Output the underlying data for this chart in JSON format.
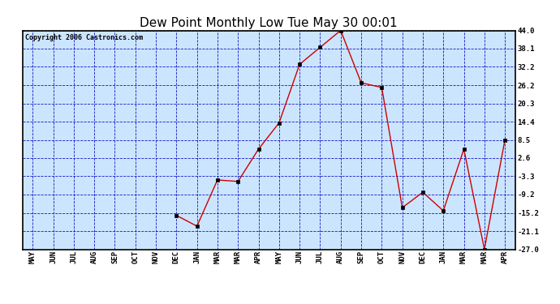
{
  "title": "Dew Point Monthly Low Tue May 30 00:01",
  "copyright": "Copyright 2006 Castronics.com",
  "x_labels": [
    "MAY",
    "JUN",
    "JUL",
    "AUG",
    "SEP",
    "OCT",
    "NOV",
    "DEC",
    "JAN",
    "MAR",
    "MAR",
    "APR",
    "MAY",
    "JUN",
    "JUL",
    "AUG",
    "SEP",
    "OCT",
    "NOV",
    "DEC",
    "JAN",
    "MAR",
    "MAR",
    "APR"
  ],
  "data_x": [
    7,
    8,
    9,
    10,
    11,
    12,
    13,
    14,
    15,
    16,
    17,
    18,
    19,
    20,
    21,
    22,
    23
  ],
  "data_y": [
    -16.0,
    -19.5,
    -4.5,
    -5.0,
    5.5,
    14.0,
    33.0,
    38.5,
    44.0,
    27.0,
    25.5,
    -13.5,
    -8.5,
    -14.5,
    5.5,
    -27.0,
    8.5
  ],
  "ylim": [
    -27.0,
    44.0
  ],
  "yticks": [
    44.0,
    38.1,
    32.2,
    26.2,
    20.3,
    14.4,
    8.5,
    2.6,
    -3.3,
    -9.2,
    -15.2,
    -21.1,
    -27.0
  ],
  "line_color": "#cc0000",
  "marker_color": "#000000",
  "bg_color": "#cce5ff",
  "grid_color": "#0000bb",
  "border_color": "#000000",
  "title_fontsize": 11,
  "tick_fontsize": 6.5,
  "copyright_fontsize": 6
}
